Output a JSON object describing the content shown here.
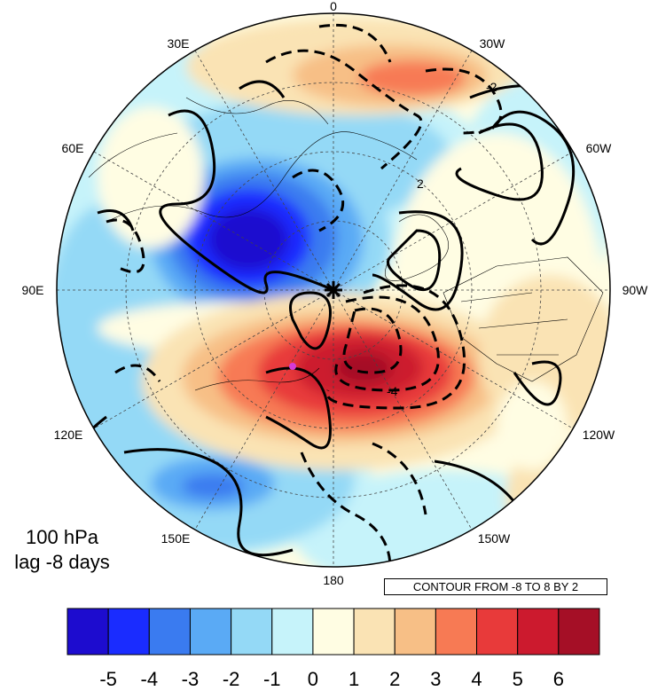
{
  "map": {
    "level_label": "100 hPa",
    "lag_label": "lag -8 days",
    "contour_note": "CONTOUR FROM -8 TO 8 BY 2",
    "longitude_labels": [
      {
        "id": "lon-0",
        "text": "0"
      },
      {
        "id": "lon-30w",
        "text": "30W"
      },
      {
        "id": "lon-60w",
        "text": "60W"
      },
      {
        "id": "lon-90w",
        "text": "90W"
      },
      {
        "id": "lon-120w",
        "text": "120W"
      },
      {
        "id": "lon-150w",
        "text": "150W"
      },
      {
        "id": "lon-180",
        "text": "180"
      },
      {
        "id": "lon-150e",
        "text": "150E"
      },
      {
        "id": "lon-120e",
        "text": "120E"
      },
      {
        "id": "lon-90e",
        "text": "90E"
      },
      {
        "id": "lon-60e",
        "text": "60E"
      },
      {
        "id": "lon-30e",
        "text": "30E"
      }
    ],
    "contour_labels": [
      "-2",
      "2",
      "-4"
    ]
  },
  "colorbar": {
    "ticks": [
      "-5",
      "-4",
      "-3",
      "-2",
      "-1",
      "0",
      "1",
      "2",
      "3",
      "4",
      "5",
      "6"
    ],
    "colors": [
      "#1d0ccf",
      "#1a2cff",
      "#3a7bf0",
      "#5aaaf5",
      "#94d9f6",
      "#c6f3fa",
      "#fffde3",
      "#fae3b4",
      "#f7bf86",
      "#f77a54",
      "#e83a3a",
      "#cc1a2e",
      "#a50f26"
    ]
  },
  "colors": {
    "shading_negative_strong": "#1a2cff",
    "shading_positive_strong": "#cc1a2e",
    "neutral": "#fffde3",
    "contour": "#000000",
    "marker": "#d43bd8"
  },
  "icons": {
    "pole_marker": "asterisk-icon",
    "station_marker": "magenta-dot-icon"
  }
}
